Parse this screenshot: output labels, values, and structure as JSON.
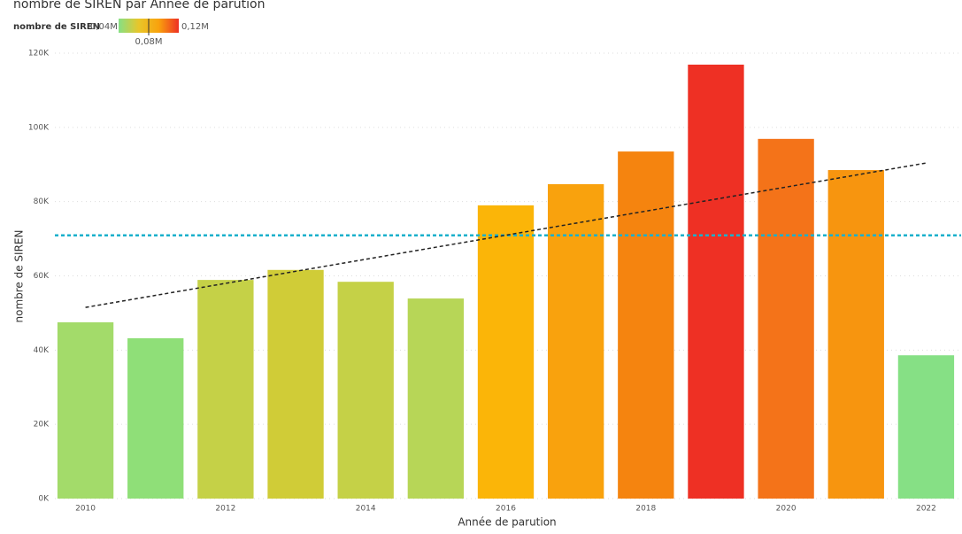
{
  "chart_data": {
    "type": "bar",
    "title": "nombre de SIREN par Année de parution",
    "x_label": "Année de parution",
    "y_label": "nombre de SIREN",
    "x": [
      2010,
      2011,
      2012,
      2013,
      2014,
      2015,
      2016,
      2017,
      2018,
      2019,
      2020,
      2021,
      2022
    ],
    "values": [
      47500,
      43200,
      58900,
      61600,
      58400,
      53900,
      79000,
      84700,
      93500,
      116900,
      96900,
      88500,
      38600
    ],
    "colors": [
      "#a3db6a",
      "#8fdf78",
      "#c5d147",
      "#d0cc37",
      "#c5d147",
      "#b7d657",
      "#fbb508",
      "#f9a20d",
      "#f5840f",
      "#ee3024",
      "#f47319",
      "#f7950f",
      "#86e085"
    ],
    "xlim": [
      2009.5,
      2022.5
    ],
    "xticks": [
      2010,
      2012,
      2014,
      2016,
      2018,
      2020,
      2022
    ],
    "ylim": [
      0,
      120000
    ],
    "yticks": [
      {
        "value": 0,
        "label": "0K"
      },
      {
        "value": 20000,
        "label": "20K"
      },
      {
        "value": 40000,
        "label": "40K"
      },
      {
        "value": 60000,
        "label": "60K"
      },
      {
        "value": 80000,
        "label": "80K"
      },
      {
        "value": 100000,
        "label": "100K"
      },
      {
        "value": 120000,
        "label": "120K"
      }
    ],
    "grid": true,
    "average_line": {
      "value": 70900,
      "color": "#1ab0cc"
    },
    "trend_line": {
      "start": 51500,
      "end": 90400,
      "color": "#222222"
    },
    "legend": {
      "title": "nombre de SIREN",
      "min": {
        "value": 40000,
        "label": "0,04M"
      },
      "mid": {
        "value": 80000,
        "label": "0,08M"
      },
      "max": {
        "value": 120000,
        "label": "0,12M"
      },
      "gradient": [
        "#86e085",
        "#e8c62a",
        "#f9a20d",
        "#ee3024"
      ]
    }
  }
}
